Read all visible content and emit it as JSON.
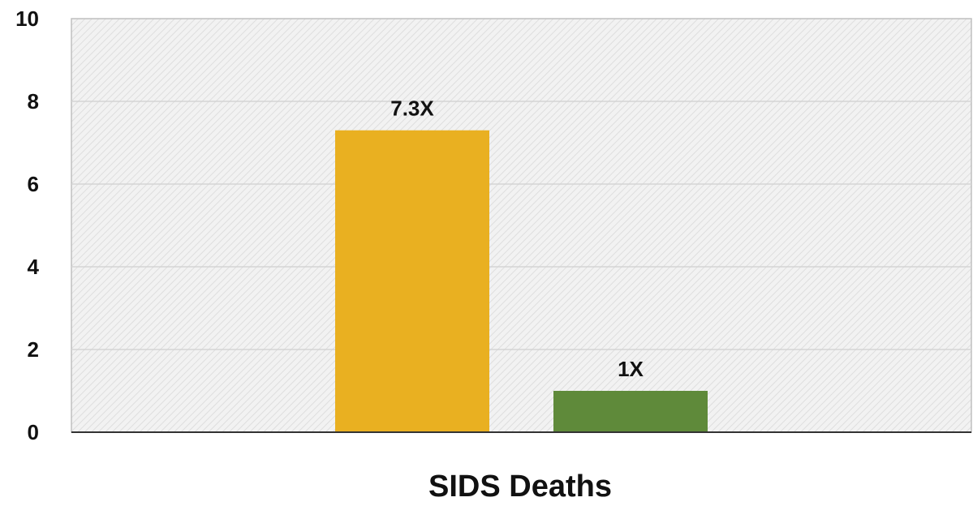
{
  "chart_data": {
    "type": "bar",
    "categories": [
      "SIDS Deaths"
    ],
    "series": [
      {
        "values": [
          7.3
        ],
        "color": "#E9B021"
      },
      {
        "values": [
          1
        ],
        "color": "#5F8A3A"
      }
    ],
    "data_labels": [
      "7.3X",
      "1X"
    ],
    "title": "",
    "xlabel": "SIDS Deaths",
    "ylabel": "",
    "ylim": [
      0,
      10
    ],
    "yticks": [
      "0",
      "2",
      "4",
      "6",
      "8",
      "10"
    ],
    "grid": true,
    "legend": "none",
    "plot_background": "hatched light gray"
  }
}
